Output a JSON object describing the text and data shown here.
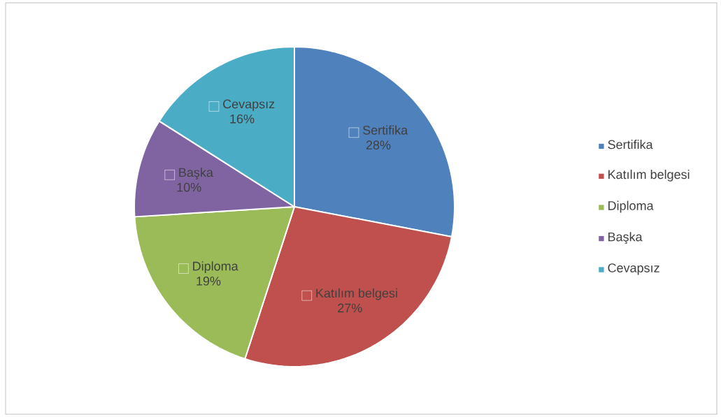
{
  "chart_data": {
    "type": "pie",
    "categories": [
      "Sertifika",
      "Katılım belgesi",
      "Diploma",
      "Başka",
      "Cevapsız"
    ],
    "values": [
      28,
      27,
      19,
      10,
      16
    ],
    "colors": [
      "#4f81bd",
      "#c0504d",
      "#9bbb59",
      "#8064a2",
      "#4bacc6"
    ],
    "value_labels": [
      "28%",
      "27%",
      "19%",
      "10%",
      "16%"
    ],
    "legend": "right"
  }
}
